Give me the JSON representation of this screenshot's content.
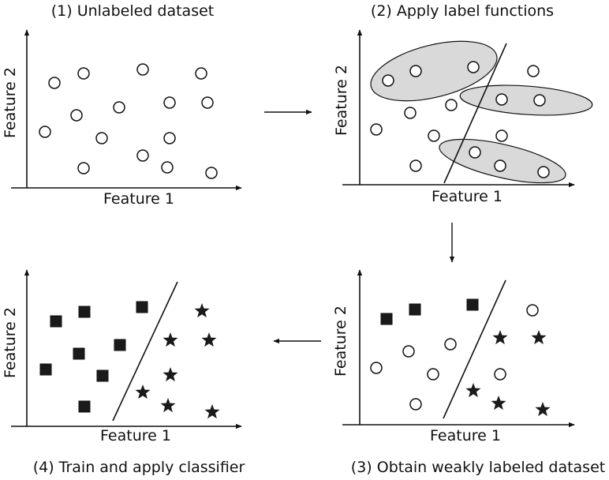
{
  "panels": {
    "p1": {
      "title": "(1) Unlabeled dataset",
      "xlabel": "Feature 1",
      "ylabel": "Feature 2",
      "points": [
        [
          "circle",
          69,
          105
        ],
        [
          "circle",
          106,
          93
        ],
        [
          "circle",
          181,
          88
        ],
        [
          "circle",
          255,
          93
        ],
        [
          "circle",
          97,
          146
        ],
        [
          "circle",
          151,
          136
        ],
        [
          "circle",
          215,
          130
        ],
        [
          "circle",
          263,
          130
        ],
        [
          "circle",
          57,
          167
        ],
        [
          "circle",
          129,
          175
        ],
        [
          "circle",
          215,
          175
        ],
        [
          "circle",
          106,
          213
        ],
        [
          "circle",
          181,
          197
        ],
        [
          "circle",
          212,
          212
        ],
        [
          "circle",
          268,
          219
        ]
      ]
    },
    "p2": {
      "title": "(2) Apply label functions",
      "xlabel": "Feature 1",
      "ylabel": "Feature 2",
      "points": [
        [
          "circle",
          492,
          102
        ],
        [
          "circle",
          527,
          90
        ],
        [
          "circle",
          600,
          85
        ],
        [
          "circle",
          676,
          90
        ],
        [
          "circle",
          520,
          143
        ],
        [
          "circle",
          572,
          133
        ],
        [
          "circle",
          636,
          126
        ],
        [
          "circle",
          684,
          127
        ],
        [
          "circle",
          477,
          164
        ],
        [
          "circle",
          550,
          172
        ],
        [
          "circle",
          636,
          172
        ],
        [
          "circle",
          527,
          210
        ],
        [
          "circle",
          602,
          193
        ],
        [
          "circle",
          634,
          210
        ],
        [
          "circle",
          689,
          218
        ]
      ]
    },
    "p3": {
      "title": "(3) Obtain weakly labeled dataset",
      "xlabel": "Feature 1",
      "ylabel": "Feature 2",
      "points": [
        [
          "square",
          490,
          404
        ],
        [
          "square",
          526,
          392
        ],
        [
          "square",
          599,
          386
        ],
        [
          "circle",
          675,
          393
        ],
        [
          "circle",
          518,
          445
        ],
        [
          "circle",
          571,
          436
        ],
        [
          "star",
          634,
          428
        ],
        [
          "star",
          683,
          428
        ],
        [
          "circle",
          477,
          466
        ],
        [
          "circle",
          549,
          474
        ],
        [
          "circle",
          634,
          474
        ],
        [
          "circle",
          527,
          512
        ],
        [
          "star",
          600,
          495
        ],
        [
          "star",
          632,
          511
        ],
        [
          "star",
          688,
          519
        ]
      ]
    },
    "p4": {
      "title": "(4) Train and apply classifier",
      "xlabel": "Feature 1",
      "ylabel": "Feature 2",
      "points": [
        [
          "square",
          71,
          407
        ],
        [
          "square",
          107,
          395
        ],
        [
          "square",
          180,
          389
        ],
        [
          "star",
          256,
          394
        ],
        [
          "square",
          100,
          448
        ],
        [
          "square",
          152,
          437
        ],
        [
          "star",
          216,
          431
        ],
        [
          "star",
          265,
          431
        ],
        [
          "square",
          58,
          468
        ],
        [
          "square",
          130,
          476
        ],
        [
          "star",
          216,
          475
        ],
        [
          "square",
          107,
          515
        ],
        [
          "star",
          181,
          497
        ],
        [
          "star",
          213,
          514
        ],
        [
          "star",
          269,
          522
        ]
      ]
    }
  },
  "colors": {
    "ink": "#111111",
    "ellipse_fill": "#d9d9d9",
    "marker_fill": "#1a1a1a"
  }
}
